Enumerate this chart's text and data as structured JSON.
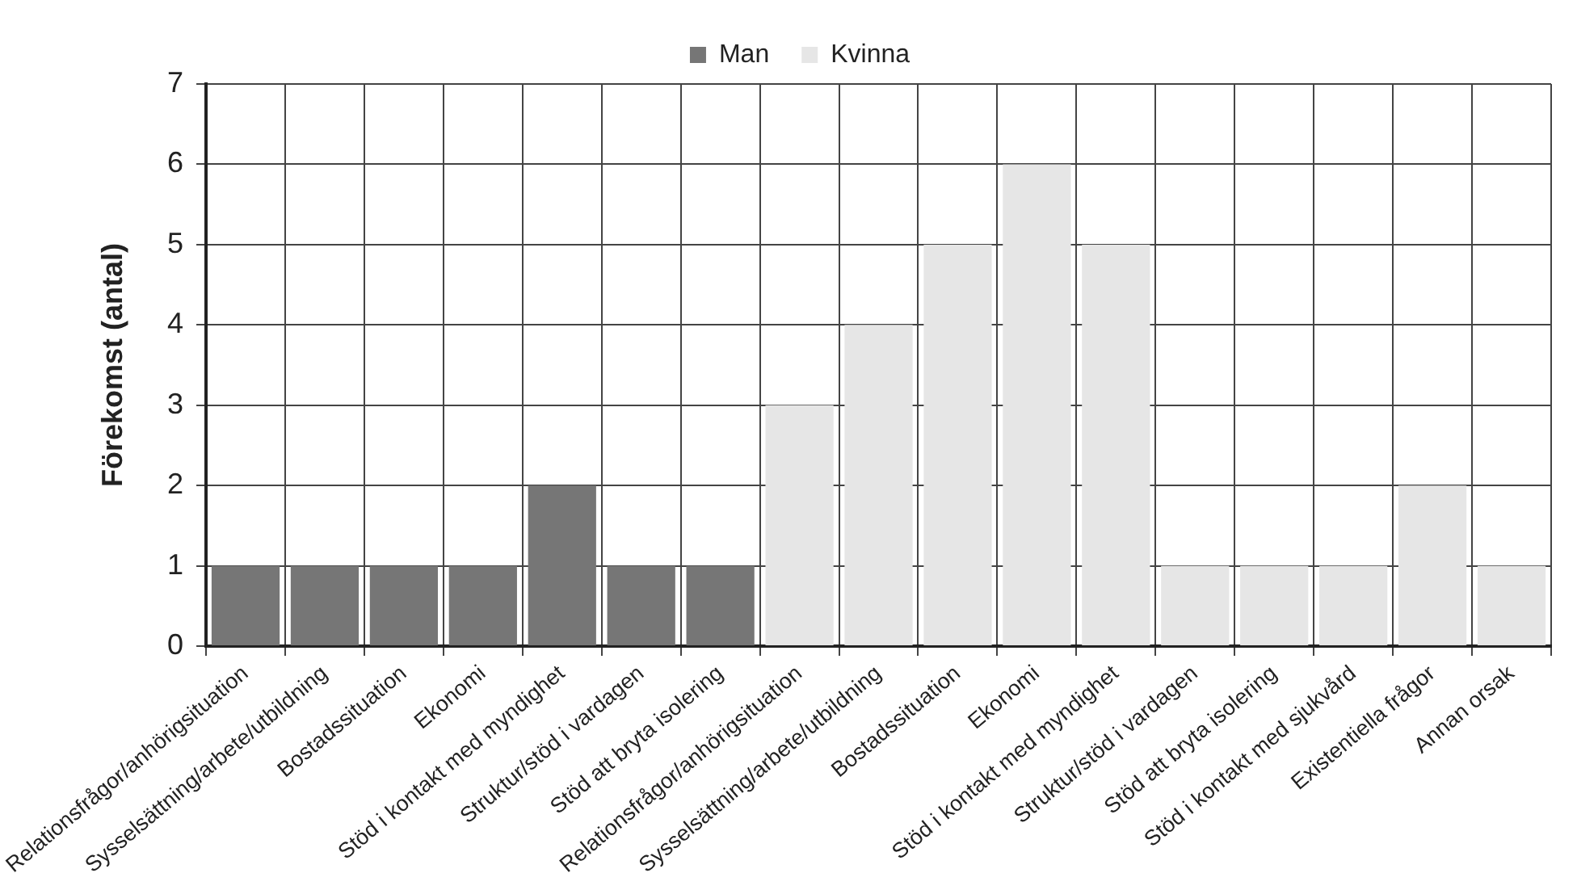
{
  "chart_data": {
    "type": "bar",
    "ylabel": "Förekomst (antal)",
    "categories": [
      "Relationsfrågor/anhörigsituation",
      "Sysselsättning/arbete/utbildning",
      "Bostadssituation",
      "Ekonomi",
      "Stöd i kontakt med myndighet",
      "Struktur/stöd i vardagen",
      "Stöd att bryta isolering",
      "Relationsfrågor/anhörigsituation",
      "Sysselsättning/arbete/utbildning",
      "Bostadssituation",
      "Ekonomi",
      "Stöd i kontakt med myndighet",
      "Struktur/stöd i vardagen",
      "Stöd att bryta isolering",
      "Stöd i kontakt med sjukvård",
      "Existentiella frågor",
      "Annan orsak"
    ],
    "series": [
      {
        "name": "Man",
        "color": "#767676",
        "values": [
          1,
          1,
          1,
          1,
          2,
          1,
          1,
          null,
          null,
          null,
          null,
          null,
          null,
          null,
          null,
          null,
          null
        ]
      },
      {
        "name": "Kvinna",
        "color": "#e6e6e6",
        "values": [
          null,
          null,
          null,
          null,
          null,
          null,
          null,
          3,
          4,
          5,
          6,
          5,
          1,
          1,
          1,
          2,
          1
        ]
      }
    ],
    "stacked": true,
    "ylim": [
      0,
      7
    ],
    "yticks": [
      0,
      1,
      2,
      3,
      4,
      5,
      6,
      7
    ],
    "grid": true,
    "legend": "top"
  }
}
